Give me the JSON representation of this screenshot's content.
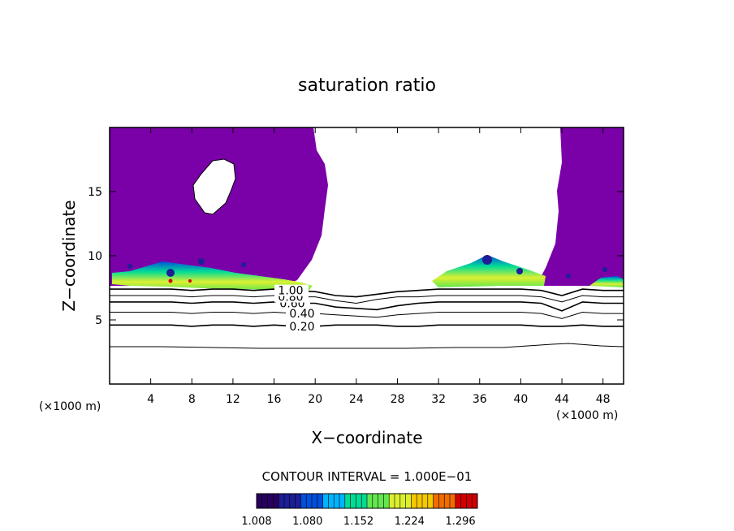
{
  "chart_data": {
    "type": "heatmap",
    "title": "saturation ratio",
    "xlabel": "X−coordinate",
    "ylabel": "Z−coordinate",
    "x_scale_note": "(×1000 m)",
    "y_scale_note": "(×1000 m)",
    "xlim": [
      0,
      50
    ],
    "ylim": [
      0,
      20
    ],
    "x_ticks": [
      4,
      8,
      12,
      16,
      20,
      24,
      28,
      32,
      36,
      40,
      44,
      48
    ],
    "x_tick_labels": [
      "4",
      "8",
      "12",
      "16",
      "20",
      "24",
      "28",
      "32",
      "36",
      "40",
      "44",
      "48"
    ],
    "y_ticks": [
      5,
      10,
      15
    ],
    "y_tick_labels": [
      "5",
      "10",
      "15"
    ],
    "contour_interval_text": "CONTOUR INTERVAL = 1.000E−01",
    "colorbar": {
      "min": 1.008,
      "max": 1.32,
      "tick_values": [
        1.008,
        1.08,
        1.152,
        1.224,
        1.296
      ],
      "tick_labels": [
        "1.008",
        "1.080",
        "1.152",
        "1.224",
        "1.296"
      ],
      "colors": [
        "#280060",
        "#1e1e96",
        "#0050dc",
        "#00b4ff",
        "#00dc96",
        "#64e650",
        "#dcf032",
        "#f5c800",
        "#f06e00",
        "#d20000"
      ]
    },
    "shaded_color": "#7a00a8",
    "contours": [
      {
        "value": 0.2,
        "label": "0.20",
        "z": [
          4.6,
          4.6,
          4.6,
          4.6,
          4.5,
          4.6,
          4.6,
          4.5,
          4.6,
          4.5,
          4.5,
          4.6,
          4.6,
          4.6,
          4.5,
          4.5,
          4.6,
          4.6,
          4.6,
          4.6,
          4.6,
          4.5,
          4.5,
          4.6,
          4.5,
          4.5
        ]
      },
      {
        "value": 0.4,
        "label": "0.40",
        "z": [
          5.6,
          5.6,
          5.6,
          5.6,
          5.5,
          5.6,
          5.6,
          5.5,
          5.6,
          5.5,
          5.5,
          5.4,
          5.3,
          5.2,
          5.4,
          5.5,
          5.6,
          5.6,
          5.6,
          5.6,
          5.6,
          5.5,
          5.1,
          5.6,
          5.5,
          5.5
        ]
      },
      {
        "value": 0.6,
        "label": "0.60",
        "z": [
          6.4,
          6.4,
          6.4,
          6.4,
          6.3,
          6.4,
          6.4,
          6.3,
          6.4,
          6.3,
          6.3,
          6.0,
          5.9,
          5.8,
          6.1,
          6.3,
          6.4,
          6.4,
          6.4,
          6.4,
          6.4,
          6.3,
          5.7,
          6.4,
          6.3,
          6.3
        ]
      },
      {
        "value": 0.8,
        "label": "0.80",
        "z": [
          6.9,
          6.9,
          6.9,
          6.9,
          6.8,
          6.9,
          6.9,
          6.8,
          6.9,
          6.8,
          6.8,
          6.5,
          6.3,
          6.6,
          6.8,
          6.8,
          6.9,
          6.9,
          6.9,
          6.9,
          6.9,
          6.8,
          6.4,
          6.9,
          6.8,
          6.8
        ]
      },
      {
        "value": 1.0,
        "label": "1.00",
        "z": [
          7.4,
          7.4,
          7.4,
          7.4,
          7.3,
          7.4,
          7.4,
          7.3,
          7.4,
          7.3,
          7.2,
          6.9,
          6.8,
          7.0,
          7.2,
          7.3,
          7.4,
          7.4,
          7.4,
          7.4,
          7.4,
          7.3,
          6.9,
          7.4,
          7.3,
          7.3
        ]
      }
    ],
    "grid": false,
    "legend": "bottom"
  }
}
